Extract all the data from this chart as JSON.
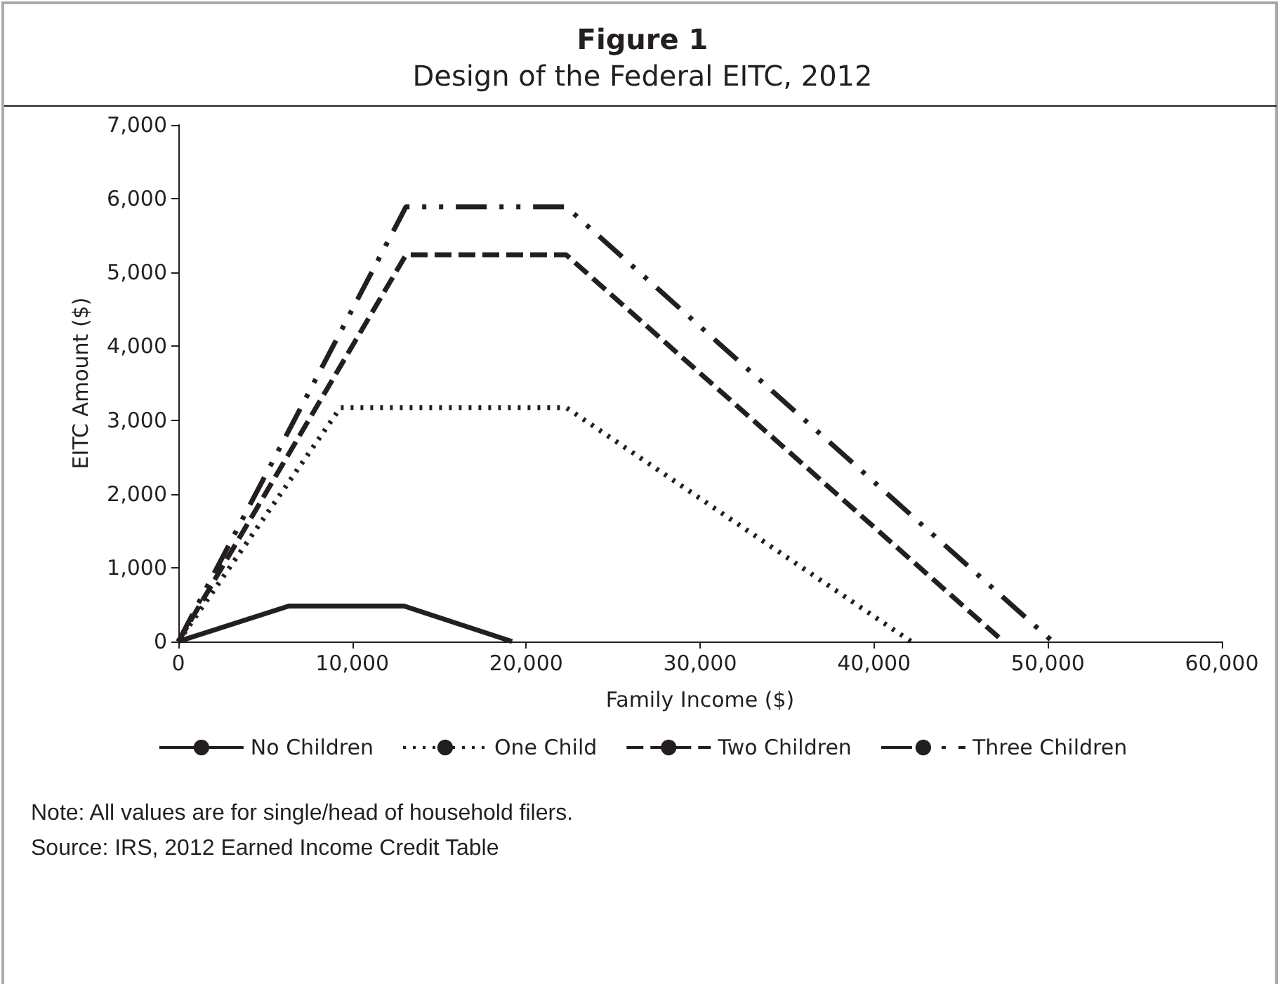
{
  "chart_data": {
    "type": "line",
    "title": "Figure 1",
    "subtitle": "Design of the Federal EITC, 2012",
    "xlabel": "Family Income ($)",
    "ylabel": "EITC Amount ($)",
    "xlim": [
      0,
      60000
    ],
    "xticks": [
      {
        "value": 0,
        "label": "0"
      },
      {
        "value": 10000,
        "label": "10,000"
      },
      {
        "value": 20000,
        "label": "20,000"
      },
      {
        "value": 30000,
        "label": "30,000"
      },
      {
        "value": 40000,
        "label": "40,000"
      },
      {
        "value": 50000,
        "label": "50,000"
      },
      {
        "value": 60000,
        "label": "60,000"
      }
    ],
    "ylim": [
      0,
      7000
    ],
    "yticks": [
      {
        "value": 0,
        "label": "0"
      },
      {
        "value": 1000,
        "label": "1,000"
      },
      {
        "value": 2000,
        "label": "2,000"
      },
      {
        "value": 3000,
        "label": "3,000"
      },
      {
        "value": 4000,
        "label": "4,000"
      },
      {
        "value": 5000,
        "label": "5,000"
      },
      {
        "value": 6000,
        "label": "6,000"
      },
      {
        "value": 7000,
        "label": "7,000"
      }
    ],
    "grid": false,
    "legend": "bottom",
    "marker": "none",
    "series": [
      {
        "name": "No Children",
        "color": "#231f20",
        "line_style": "solid",
        "x": [
          0,
          6350,
          12980,
          19190
        ],
        "values": [
          0,
          480,
          480,
          0
        ]
      },
      {
        "name": "One Child",
        "color": "#231f20",
        "line_style": "dotted",
        "x": [
          0,
          9320,
          22300,
          42130
        ],
        "values": [
          0,
          3170,
          3170,
          0
        ]
      },
      {
        "name": "Two Children",
        "color": "#231f20",
        "line_style": "dashed",
        "x": [
          0,
          13090,
          22300,
          47440
        ],
        "values": [
          0,
          5240,
          5240,
          0
        ]
      },
      {
        "name": "Three Children",
        "color": "#231f20",
        "line_style": "dashdotdot",
        "x": [
          0,
          13090,
          22300,
          50270
        ],
        "values": [
          0,
          5890,
          5890,
          0
        ]
      }
    ],
    "annotations": [
      "Note: All values are for single/head of household filers.",
      "Source: IRS, 2012 Earned Income Credit Table"
    ]
  }
}
